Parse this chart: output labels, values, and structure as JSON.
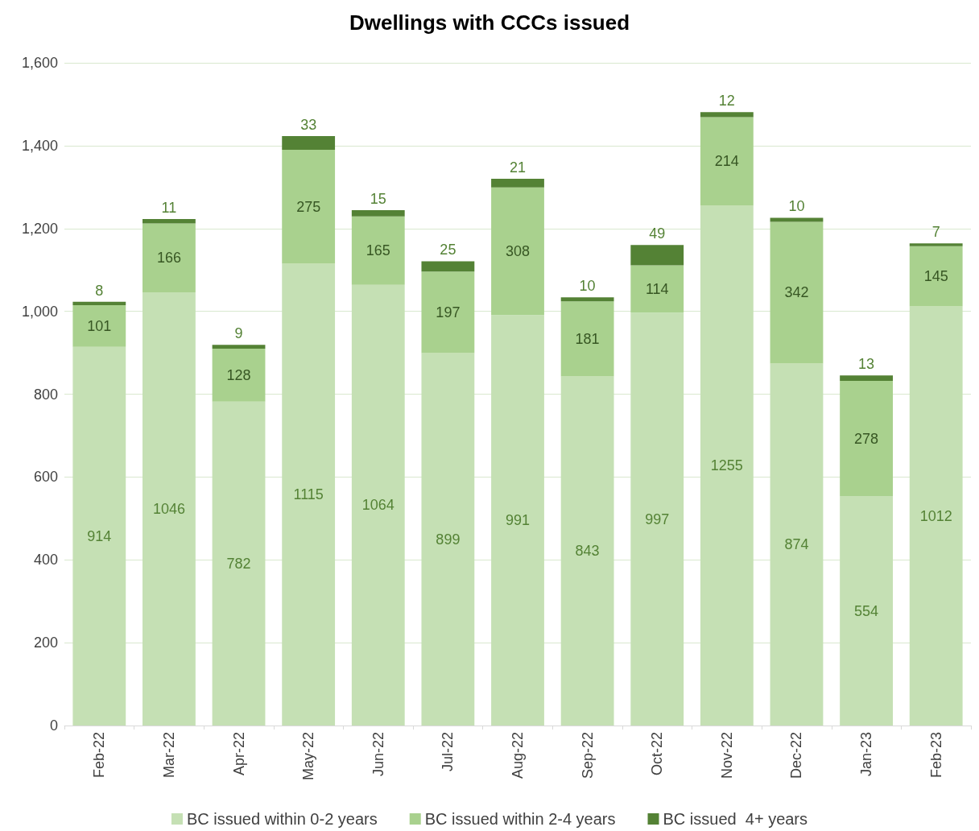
{
  "chart_data": {
    "type": "bar",
    "title": "Dwellings with CCCs issued",
    "stacked": true,
    "categories": [
      "Feb-22",
      "Mar-22",
      "Apr-22",
      "May-22",
      "Jun-22",
      "Jul-22",
      "Aug-22",
      "Sep-22",
      "Oct-22",
      "Nov-22",
      "Dec-22",
      "Jan-23",
      "Feb-23"
    ],
    "series": [
      {
        "name": "BC issued within 0-2 years",
        "color": "#c5e0b4",
        "values": [
          914,
          1046,
          782,
          1115,
          1064,
          899,
          991,
          843,
          997,
          1255,
          874,
          554,
          1012
        ]
      },
      {
        "name": "BC issued within 2-4 years",
        "color": "#a9d18e",
        "values": [
          101,
          166,
          128,
          275,
          165,
          197,
          308,
          181,
          114,
          214,
          342,
          278,
          145
        ]
      },
      {
        "name": "BC issued  4+ years",
        "color": "#548235",
        "values": [
          8,
          11,
          9,
          33,
          15,
          25,
          21,
          10,
          49,
          12,
          10,
          13,
          7
        ]
      }
    ],
    "ylim": [
      0,
      1600
    ],
    "yticks": [
      0,
      200,
      400,
      600,
      800,
      {
        "value": 1000,
        "label": "1,000"
      },
      {
        "value": 1200,
        "label": "1,200"
      },
      {
        "value": 1400,
        "label": "1,400"
      },
      {
        "value": 1600,
        "label": "1,600"
      }
    ],
    "grid": "y",
    "legend": "bottom",
    "data_labels": true
  }
}
